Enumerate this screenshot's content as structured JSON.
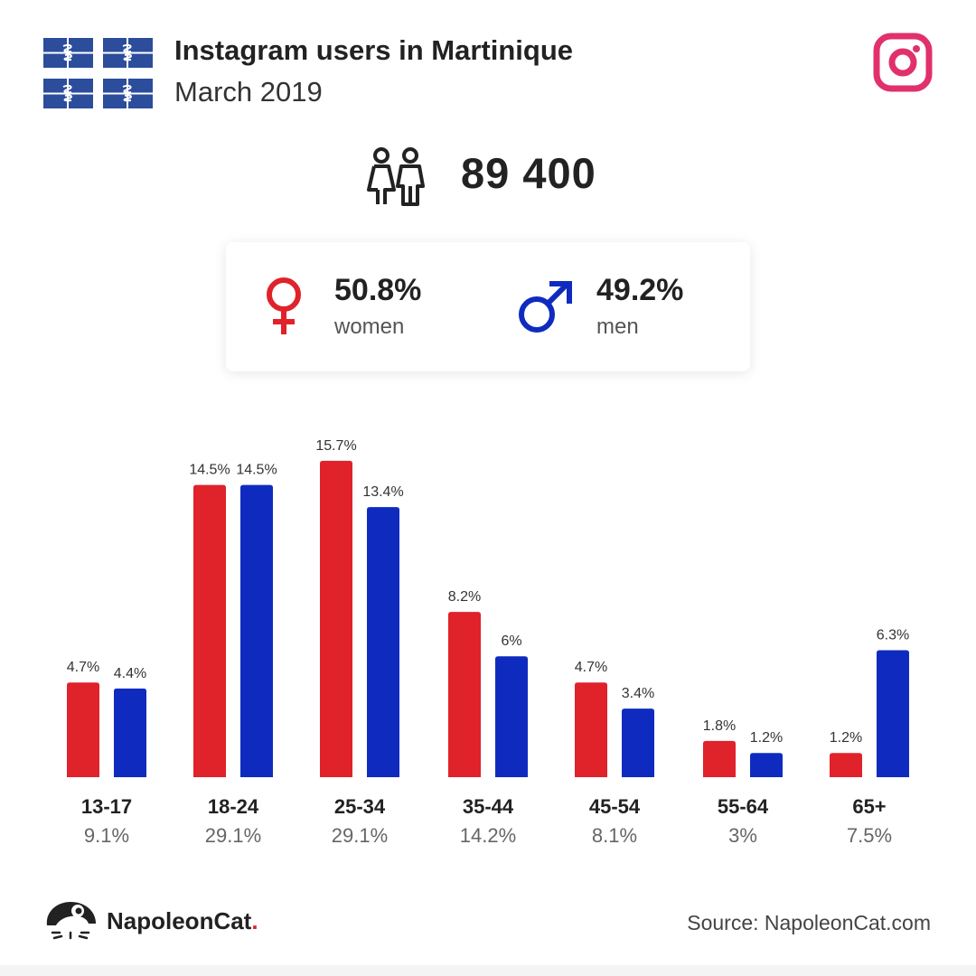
{
  "header": {
    "title": "Instagram users in Martinique",
    "subtitle": "March 2019"
  },
  "icons": {
    "flag": "martinique-flag-icon",
    "instagram": "instagram-icon",
    "users": "users-icon",
    "female": "female-symbol-icon",
    "male": "male-symbol-icon",
    "brand": "napoleoncat-logo-icon"
  },
  "totals": {
    "users": "89 400"
  },
  "gender": {
    "women_pct": "50.8%",
    "women_label": "women",
    "men_pct": "49.2%",
    "men_label": "men"
  },
  "colors": {
    "women": "#e0222a",
    "men": "#0f2bbf",
    "instagram": "#e1306c",
    "flag_blue": "#2b4d9b"
  },
  "chart_data": {
    "type": "bar",
    "categories": [
      "13-17",
      "18-24",
      "25-34",
      "35-44",
      "45-54",
      "55-64",
      "65+"
    ],
    "category_totals": [
      "9.1%",
      "29.1%",
      "29.1%",
      "14.2%",
      "8.1%",
      "3%",
      "7.5%"
    ],
    "series": [
      {
        "values": [
          4.7,
          14.5,
          15.7,
          8.2,
          4.7,
          1.8,
          1.2
        ],
        "labels": [
          "4.7%",
          "14.5%",
          "15.7%",
          "8.2%",
          "4.7%",
          "1.8%",
          "1.2%"
        ],
        "color": "#e0222a"
      },
      {
        "values": [
          4.4,
          14.5,
          13.4,
          6,
          3.4,
          1.2,
          6.3
        ],
        "labels": [
          "4.4%",
          "14.5%",
          "13.4%",
          "6%",
          "3.4%",
          "1.2%",
          "6.3%"
        ],
        "color": "#0f2bbf"
      }
    ],
    "ylim": [
      0,
      16
    ],
    "grid": false,
    "legend": "none"
  },
  "footer": {
    "brand_name": "NapoleonCat",
    "brand_dot": ".",
    "source": "Source: NapoleonCat.com"
  }
}
